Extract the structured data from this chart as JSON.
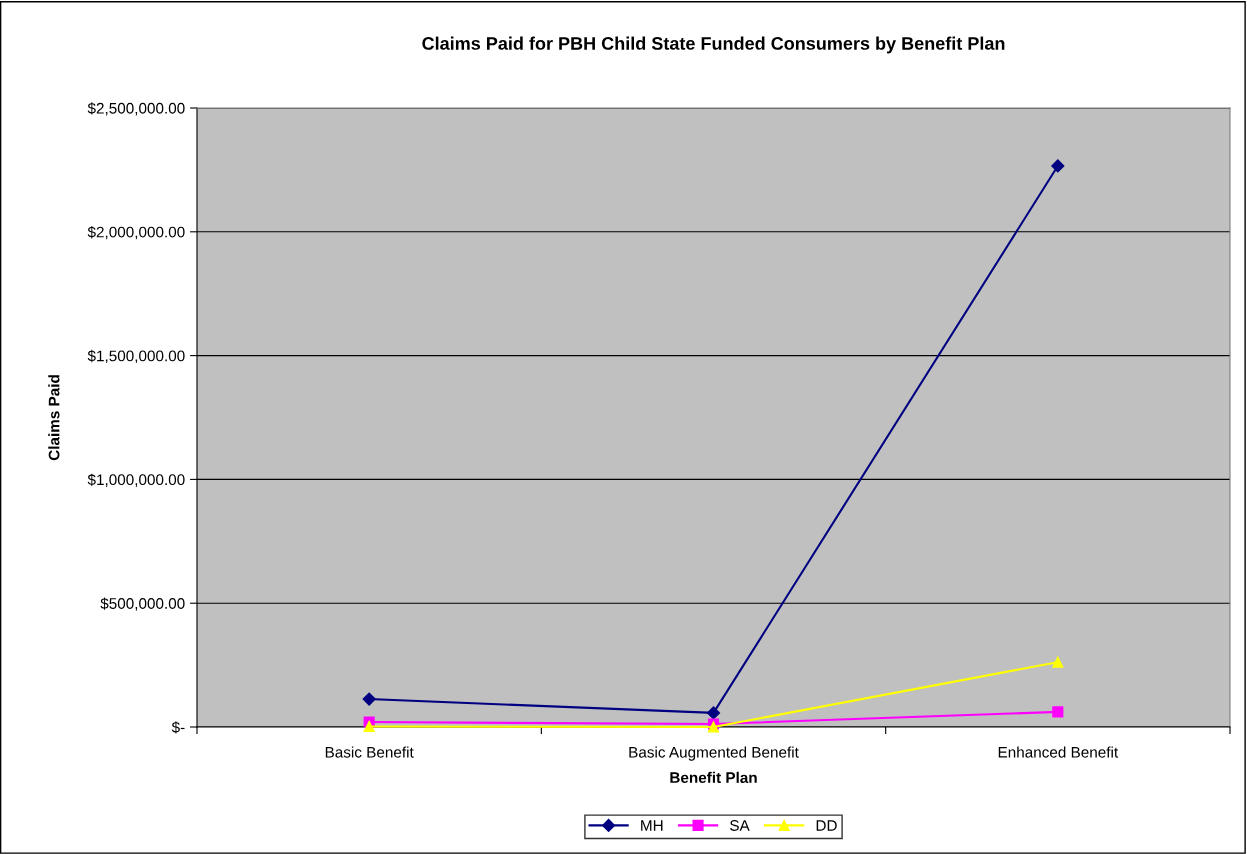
{
  "chart_data": {
    "type": "line",
    "title": "Claims Paid for PBH Child State Funded Consumers by Benefit Plan",
    "xlabel": "Benefit Plan",
    "ylabel": "Claims Paid",
    "categories": [
      "Basic Benefit",
      "Basic Augmented Benefit",
      "Enhanced Benefit"
    ],
    "series": [
      {
        "name": "MH",
        "color": "#000080",
        "marker": "diamond",
        "values": [
          113000,
          57000,
          2266000
        ]
      },
      {
        "name": "SA",
        "color": "#ff00ff",
        "marker": "square",
        "values": [
          20000,
          12000,
          61000
        ]
      },
      {
        "name": "DD",
        "color": "#ffff00",
        "marker": "triangle",
        "values": [
          2000,
          0,
          262000
        ]
      }
    ],
    "ylim": [
      0,
      2500000
    ],
    "yticks": [
      {
        "value": 0,
        "label": "$-"
      },
      {
        "value": 500000,
        "label": "$500,000.00"
      },
      {
        "value": 1000000,
        "label": "$1,000,000.00"
      },
      {
        "value": 1500000,
        "label": "$1,500,000.00"
      },
      {
        "value": 2000000,
        "label": "$2,000,000.00"
      },
      {
        "value": 2500000,
        "label": "$2,500,000.00"
      }
    ],
    "grid": "y",
    "legend": "bottom",
    "line_style": "solid"
  }
}
